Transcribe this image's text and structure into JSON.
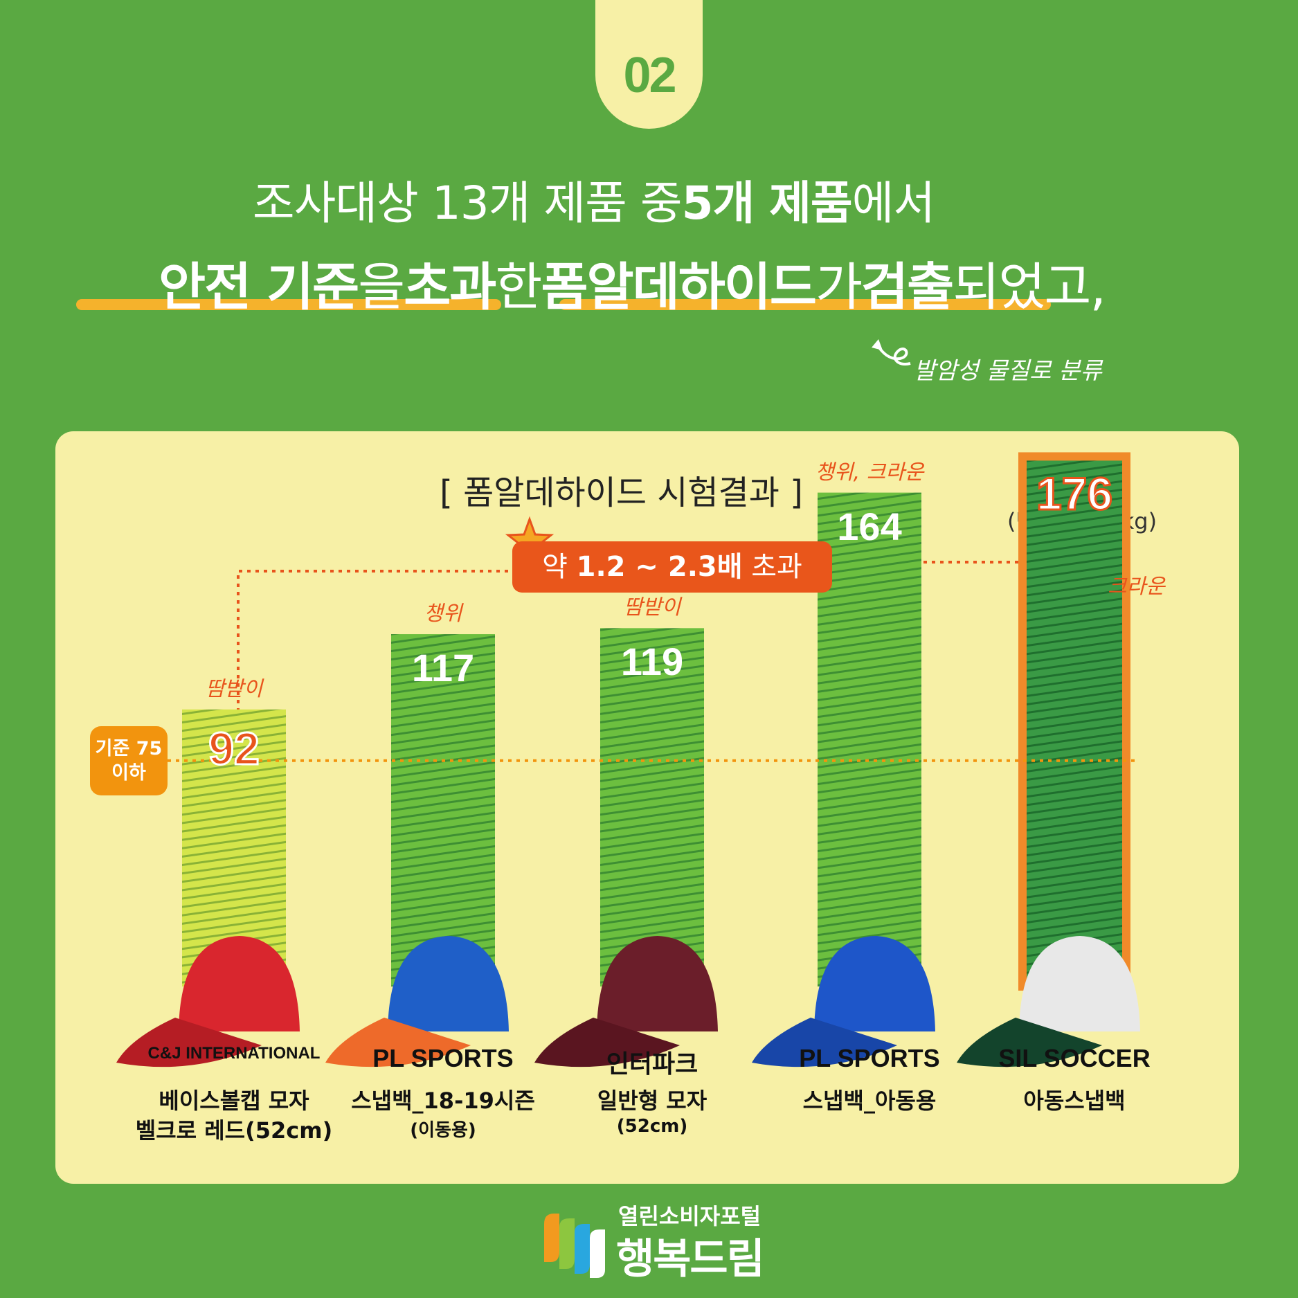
{
  "section_number": "02",
  "headline": {
    "line1_a": "조사대상 13개 제품 중 ",
    "line1_b": "5개 제품",
    "line1_c": "에서",
    "line2_a": "안전 기준",
    "line2_b": "을 ",
    "line2_c": "초과",
    "line2_d": "한 ",
    "line2_e": "폼알데하이드",
    "line2_f": "가 ",
    "line2_g": "검출",
    "line2_h": "되었고,"
  },
  "handwritten_note": "발암성 물질로 분류",
  "highlight": {
    "a": "약 ",
    "b": "1.2 ~ 2.3배",
    "c": " 초과"
  },
  "standard_label": {
    "line1": "기준 75",
    "line2": "이하"
  },
  "footer": {
    "line1": "열린소비자포털",
    "line2": "행복드림"
  },
  "colors": {
    "background": "#5aa942",
    "panel": "#f7f0a6",
    "accent_orange": "#e9561b",
    "bar_green": "#6cbf3f",
    "bar_lime": "#cfe24a",
    "bar_dark": "#2e8b3e"
  },
  "chart_data": {
    "type": "bar",
    "title": "[ 폼알데하이드 시험결과 ]",
    "unit": "(단위 : mg/kg)",
    "ylim": [
      0,
      200
    ],
    "threshold": 75,
    "categories": [
      {
        "name": "베이스볼캡 모자",
        "sub": "벨크로 레드(52cm)",
        "brand": "C&J INTERNATIONAL",
        "part": "땀받이",
        "value": 92
      },
      {
        "name": "스냅백_18-19시즌",
        "sub": "(이동용)",
        "brand": "PL SPORTS",
        "part": "챙위",
        "value": 117
      },
      {
        "name": "일반형 모자",
        "sub": "(52cm)",
        "brand": "인터파크",
        "part": "땀받이",
        "value": 119
      },
      {
        "name": "스냅백_아동용",
        "sub": "",
        "brand": "PL SPORTS",
        "part": "챙위, 크라운",
        "value": 164
      },
      {
        "name": "아동스냅백",
        "sub": "",
        "brand": "SIL SOCCER",
        "part": "크라운",
        "value": 176
      }
    ]
  }
}
